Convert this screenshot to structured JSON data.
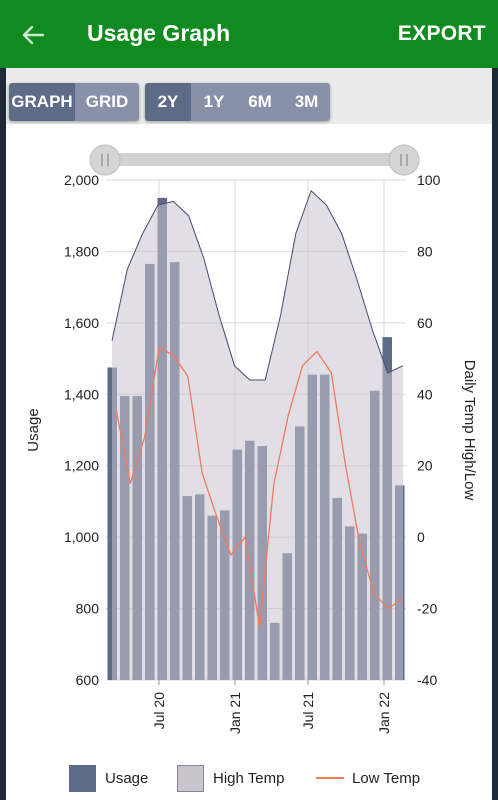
{
  "app": {
    "title": "Usage Graph",
    "export_label": "EXPORT"
  },
  "view_toggle": [
    "GRAPH",
    "GRID"
  ],
  "range_toggle": [
    "2Y",
    "1Y",
    "6M",
    "3M"
  ],
  "active": {
    "view": "GRAPH",
    "range": "2Y"
  },
  "colors": {
    "appbar": "#118a1f",
    "usage": "#5e6b86",
    "high_fill": "#c9c5cf",
    "high_line": "#4b4570",
    "low_line": "#f07a5e"
  },
  "chart_data": {
    "type": "bar",
    "ylabel": "Usage",
    "y2label": "Daily Temp High/Low",
    "ylim": [
      600,
      2000
    ],
    "y2lim": [
      -40,
      100
    ],
    "yticks": [
      "2,000",
      "1,800",
      "1,600",
      "1,400",
      "1,200",
      "1,000",
      "800",
      "600"
    ],
    "y2ticks": [
      "100",
      "80",
      "60",
      "40",
      "20",
      "0",
      "-20",
      "-40"
    ],
    "xtick_labels": [
      "Jul 20",
      "Jan 21",
      "Jul 21",
      "Jan 22"
    ],
    "grid": true,
    "series": [
      {
        "name": "Usage",
        "type": "bar",
        "values": [
          1475,
          1395,
          1395,
          1765,
          1950,
          1770,
          1115,
          1120,
          1060,
          1075,
          1245,
          1270,
          1255,
          760,
          955,
          1310,
          1455,
          1455,
          1110,
          1030,
          1010,
          1410,
          1560,
          1145
        ]
      },
      {
        "name": "High Temp",
        "type": "area",
        "values": [
          55,
          75,
          85,
          93,
          94,
          90,
          78,
          62,
          48,
          44,
          44,
          62,
          85,
          97,
          93,
          85,
          72,
          58,
          46,
          48
        ]
      },
      {
        "name": "Low Temp",
        "type": "line",
        "values": [
          36,
          15,
          28,
          53,
          51,
          45,
          18,
          6,
          -5,
          0,
          -25,
          15,
          34,
          48,
          52,
          46,
          20,
          -2,
          -16,
          -20,
          -17
        ]
      }
    ],
    "legend": [
      "Usage",
      "High Temp",
      "Low Temp"
    ]
  }
}
